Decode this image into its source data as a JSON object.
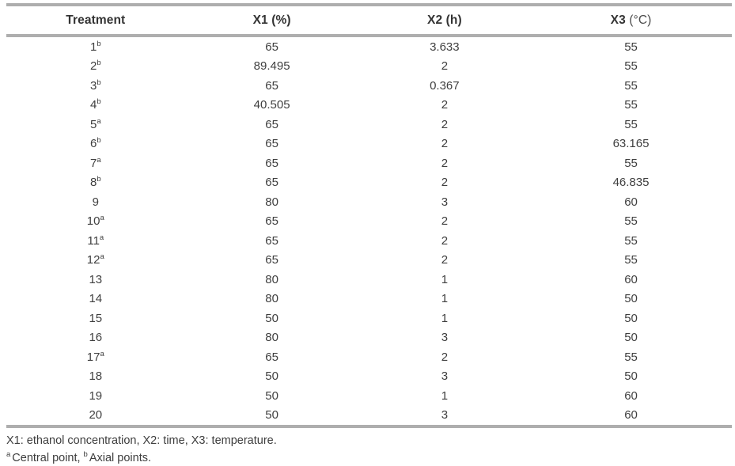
{
  "table": {
    "columns": [
      {
        "label": "Treatment",
        "unit": ""
      },
      {
        "label": "X1",
        "unit": "(%)"
      },
      {
        "label": "X2",
        "unit": "(h)"
      },
      {
        "label": "X3",
        "unit": "(°C)"
      }
    ],
    "rows": [
      {
        "treatment": "1",
        "marker": "b",
        "x1": "65",
        "x2": "3.633",
        "x3": "55"
      },
      {
        "treatment": "2",
        "marker": "b",
        "x1": "89.495",
        "x2": "2",
        "x3": "55"
      },
      {
        "treatment": "3",
        "marker": "b",
        "x1": "65",
        "x2": "0.367",
        "x3": "55"
      },
      {
        "treatment": "4",
        "marker": "b",
        "x1": "40.505",
        "x2": "2",
        "x3": "55"
      },
      {
        "treatment": "5",
        "marker": "a",
        "x1": "65",
        "x2": "2",
        "x3": "55"
      },
      {
        "treatment": "6",
        "marker": "b",
        "x1": "65",
        "x2": "2",
        "x3": "63.165"
      },
      {
        "treatment": "7",
        "marker": "a",
        "x1": "65",
        "x2": "2",
        "x3": "55"
      },
      {
        "treatment": "8",
        "marker": "b",
        "x1": "65",
        "x2": "2",
        "x3": "46.835"
      },
      {
        "treatment": "9",
        "marker": "",
        "x1": "80",
        "x2": "3",
        "x3": "60"
      },
      {
        "treatment": "10",
        "marker": "a",
        "x1": "65",
        "x2": "2",
        "x3": "55"
      },
      {
        "treatment": "11",
        "marker": "a",
        "x1": "65",
        "x2": "2",
        "x3": "55"
      },
      {
        "treatment": "12",
        "marker": "a",
        "x1": "65",
        "x2": "2",
        "x3": "55"
      },
      {
        "treatment": "13",
        "marker": "",
        "x1": "80",
        "x2": "1",
        "x3": "60"
      },
      {
        "treatment": "14",
        "marker": "",
        "x1": "80",
        "x2": "1",
        "x3": "50"
      },
      {
        "treatment": "15",
        "marker": "",
        "x1": "50",
        "x2": "1",
        "x3": "50"
      },
      {
        "treatment": "16",
        "marker": "",
        "x1": "80",
        "x2": "3",
        "x3": "50"
      },
      {
        "treatment": "17",
        "marker": "a",
        "x1": "65",
        "x2": "2",
        "x3": "55"
      },
      {
        "treatment": "18",
        "marker": "",
        "x1": "50",
        "x2": "3",
        "x3": "50"
      },
      {
        "treatment": "19",
        "marker": "",
        "x1": "50",
        "x2": "1",
        "x3": "60"
      },
      {
        "treatment": "20",
        "marker": "",
        "x1": "50",
        "x2": "3",
        "x3": "60"
      }
    ]
  },
  "footnotes": {
    "definitions": "X1: ethanol concentration, X2: time, X3: temperature.",
    "marker_a": "a",
    "text_a": "Central point,",
    "marker_b": "b",
    "text_b": "Axial points."
  },
  "colors": {
    "rule": "#aeaeae",
    "text": "#3f3f3f",
    "header_text": "#333333",
    "background": "#ffffff"
  }
}
